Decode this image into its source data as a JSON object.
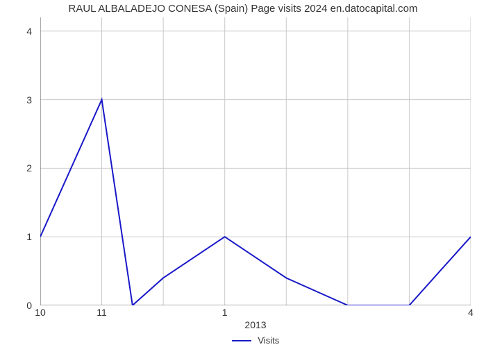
{
  "chart": {
    "type": "line",
    "title": "RAUL ALBALADEJO CONESA (Spain) Page visits 2024 en.datocapital.com",
    "title_fontsize": 15,
    "title_color": "#333333",
    "background_color": "#ffffff",
    "plot_background_color": "#ffffff",
    "grid_color": "#c8c8c8",
    "grid_linewidth": 1,
    "axis_line_color": "#555555",
    "axis_linewidth": 1,
    "series": {
      "name": "Visits",
      "color": "#1818c8",
      "linewidth": 2,
      "x": [
        0,
        1,
        1.5,
        2,
        3,
        4,
        5,
        6,
        7
      ],
      "y": [
        1,
        3,
        0,
        0.4,
        1,
        0.4,
        0,
        0,
        1
      ]
    },
    "xlim": [
      0,
      7
    ],
    "ylim": [
      0,
      4.2
    ],
    "x_ticks": [
      {
        "pos": 0,
        "label": "10"
      },
      {
        "pos": 1,
        "label": "11"
      },
      {
        "pos": 3,
        "label": "1"
      },
      {
        "pos": 7,
        "label": "4"
      }
    ],
    "x_minor_ticks": [
      0,
      1,
      2,
      3,
      4,
      5,
      6,
      7
    ],
    "y_ticks": [
      {
        "pos": 0,
        "label": "0"
      },
      {
        "pos": 1,
        "label": "1"
      },
      {
        "pos": 2,
        "label": "2"
      },
      {
        "pos": 3,
        "label": "3"
      },
      {
        "pos": 4,
        "label": "4"
      }
    ],
    "x_label": "2013",
    "x_label_fontsize": 14,
    "tick_fontsize": 14,
    "tick_color": "#333333",
    "legend": {
      "label": "Visits",
      "position": "bottom-center",
      "fontsize": 13,
      "color": "#333333"
    }
  }
}
